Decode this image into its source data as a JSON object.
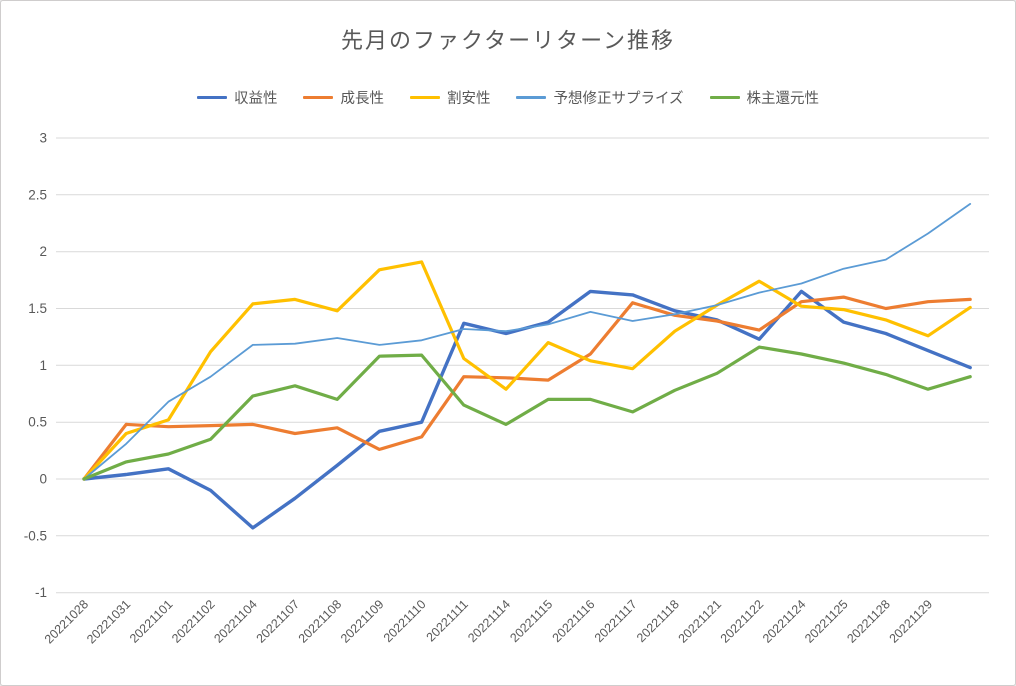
{
  "title": "先月のファクターリターン推移",
  "chart_data": {
    "type": "line",
    "title": "先月のファクターリターン推移",
    "categories": [
      "20221028",
      "20221031",
      "20221101",
      "20221102",
      "20221104",
      "20221107",
      "20221108",
      "20221109",
      "20221110",
      "20221111",
      "20221114",
      "20221115",
      "20221116",
      "20221117",
      "20221118",
      "20221121",
      "20221122",
      "20221124",
      "20221125",
      "20221128",
      "20221129",
      ""
    ],
    "series": [
      {
        "name": "収益性",
        "color": "#4472C4",
        "stroke_width": 3.4,
        "values": [
          0,
          0.04,
          0.09,
          -0.1,
          -0.43,
          -0.17,
          0.12,
          0.42,
          0.5,
          1.37,
          1.28,
          1.38,
          1.65,
          1.62,
          1.48,
          1.4,
          1.23,
          1.65,
          1.38,
          1.28,
          1.13,
          0.98
        ]
      },
      {
        "name": "成長性",
        "color": "#ED7D31",
        "stroke_width": 3.2,
        "values": [
          0,
          0.48,
          0.46,
          0.47,
          0.48,
          0.4,
          0.45,
          0.26,
          0.37,
          0.9,
          0.89,
          0.87,
          1.1,
          1.55,
          1.44,
          1.39,
          1.31,
          1.56,
          1.6,
          1.5,
          1.56,
          1.58
        ]
      },
      {
        "name": "割安性",
        "color": "#FFC000",
        "stroke_width": 3.2,
        "values": [
          0,
          0.4,
          0.52,
          1.12,
          1.54,
          1.58,
          1.48,
          1.84,
          1.91,
          1.06,
          0.79,
          1.2,
          1.04,
          0.97,
          1.3,
          1.53,
          1.74,
          1.52,
          1.49,
          1.4,
          1.26,
          1.51
        ]
      },
      {
        "name": "予想修正サプライズ",
        "color": "#5B9BD5",
        "stroke_width": 1.8,
        "values": [
          0,
          0.31,
          0.68,
          0.9,
          1.18,
          1.19,
          1.24,
          1.18,
          1.22,
          1.32,
          1.3,
          1.36,
          1.47,
          1.39,
          1.45,
          1.53,
          1.64,
          1.72,
          1.85,
          1.93,
          2.16,
          2.42
        ]
      },
      {
        "name": "株主還元性",
        "color": "#70AD47",
        "stroke_width": 3.2,
        "values": [
          0,
          0.15,
          0.22,
          0.35,
          0.73,
          0.82,
          0.7,
          1.08,
          1.09,
          0.65,
          0.48,
          0.7,
          0.7,
          0.59,
          0.78,
          0.93,
          1.16,
          1.1,
          1.02,
          0.92,
          0.79,
          0.9
        ]
      }
    ],
    "ylim": [
      -1,
      3
    ],
    "yticks": [
      "3",
      "2.5",
      "2",
      "1.5",
      "1",
      "0.5",
      "0",
      "-0.5",
      "-1"
    ],
    "grid": true,
    "legend_position": "top",
    "x_label_rotation": -45,
    "axis_text_color": "#595959",
    "grid_color": "#D9D9D9"
  }
}
